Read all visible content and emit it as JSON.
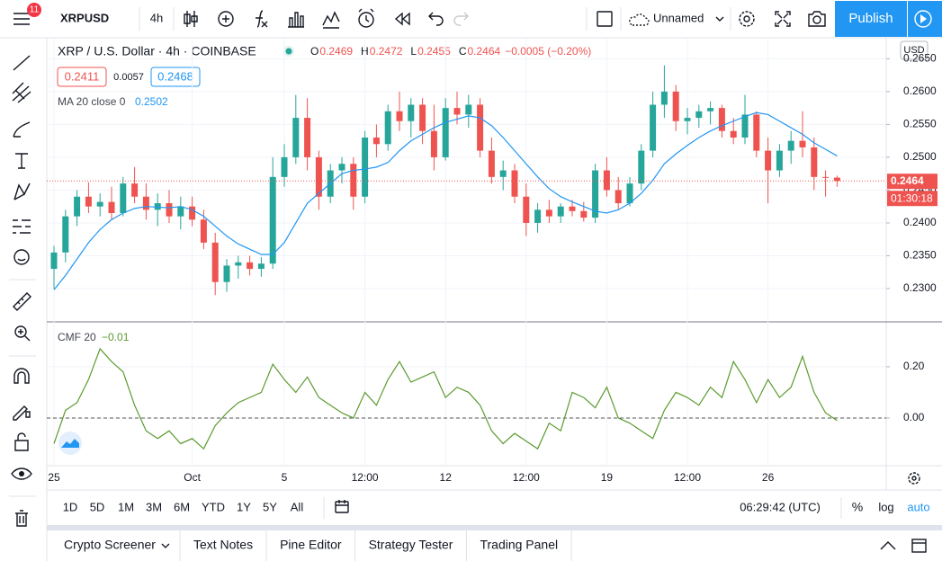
{
  "toolbar": {
    "badge": "11",
    "symbol": "XRPUSD",
    "interval": "4h",
    "layout_name": "Unnamed",
    "publish": "Publish"
  },
  "chart_data": [
    {
      "type": "candlestick",
      "title": "XRP / U.S. Dollar · 4h · COINBASE",
      "legend": [
        {
          "key": "O",
          "label": "0.2469"
        },
        {
          "key": "H",
          "label": "0.2472"
        },
        {
          "key": "L",
          "label": "0.2455"
        },
        {
          "key": "C",
          "label": "0.2464"
        }
      ],
      "change": "−0.0005 (−0.20%)",
      "quote": [
        "0.2411",
        "0.0057",
        "0.2468"
      ],
      "currency": "USD",
      "up_color": "#26a69a",
      "down_color": "#ef5350",
      "categories": [
        "25",
        null,
        null,
        null,
        null,
        null,
        null,
        null,
        null,
        null,
        null,
        null,
        "Oct",
        null,
        null,
        null,
        null,
        null,
        null,
        null,
        "5",
        null,
        null,
        null,
        null,
        null,
        null,
        "12:00",
        null,
        null,
        null,
        null,
        null,
        null,
        "12",
        null,
        null,
        null,
        null,
        null,
        null,
        "12:00",
        null,
        null,
        null,
        null,
        null,
        null,
        "19",
        null,
        null,
        null,
        null,
        null,
        null,
        "12:00",
        null,
        null,
        null,
        null,
        null,
        null,
        "26",
        null,
        null,
        null,
        null,
        null,
        null
      ],
      "candles": [
        [
          0.233,
          0.2365,
          0.23,
          0.2355
        ],
        [
          0.2355,
          0.242,
          0.234,
          0.241
        ],
        [
          0.241,
          0.245,
          0.2395,
          0.244
        ],
        [
          0.244,
          0.2462,
          0.2415,
          0.2425
        ],
        [
          0.2425,
          0.2445,
          0.241,
          0.2432
        ],
        [
          0.2432,
          0.2455,
          0.2405,
          0.2415
        ],
        [
          0.2415,
          0.247,
          0.241,
          0.246
        ],
        [
          0.246,
          0.2485,
          0.243,
          0.244
        ],
        [
          0.244,
          0.246,
          0.2405,
          0.242
        ],
        [
          0.242,
          0.2445,
          0.2395,
          0.243
        ],
        [
          0.243,
          0.245,
          0.24,
          0.241
        ],
        [
          0.241,
          0.244,
          0.239,
          0.2425
        ],
        [
          0.2425,
          0.244,
          0.2395,
          0.2405
        ],
        [
          0.2405,
          0.242,
          0.236,
          0.237
        ],
        [
          0.237,
          0.2385,
          0.229,
          0.231
        ],
        [
          0.231,
          0.2345,
          0.2295,
          0.2335
        ],
        [
          0.2335,
          0.235,
          0.2315,
          0.234
        ],
        [
          0.234,
          0.235,
          0.232,
          0.233
        ],
        [
          0.233,
          0.2348,
          0.2318,
          0.2338
        ],
        [
          0.2338,
          0.25,
          0.233,
          0.247
        ],
        [
          0.247,
          0.252,
          0.2455,
          0.25
        ],
        [
          0.25,
          0.2595,
          0.249,
          0.256
        ],
        [
          0.256,
          0.259,
          0.248,
          0.25
        ],
        [
          0.25,
          0.251,
          0.242,
          0.244
        ],
        [
          0.244,
          0.249,
          0.243,
          0.248
        ],
        [
          0.248,
          0.25,
          0.246,
          0.249
        ],
        [
          0.249,
          0.25,
          0.242,
          0.244
        ],
        [
          0.244,
          0.254,
          0.243,
          0.253
        ],
        [
          0.253,
          0.255,
          0.25,
          0.252
        ],
        [
          0.252,
          0.258,
          0.251,
          0.257
        ],
        [
          0.257,
          0.26,
          0.254,
          0.2555
        ],
        [
          0.2555,
          0.259,
          0.253,
          0.258
        ],
        [
          0.258,
          0.259,
          0.252,
          0.254
        ],
        [
          0.254,
          0.258,
          0.248,
          0.25
        ],
        [
          0.25,
          0.259,
          0.2495,
          0.2575
        ],
        [
          0.2575,
          0.26,
          0.255,
          0.2565
        ],
        [
          0.2565,
          0.2595,
          0.2545,
          0.258
        ],
        [
          0.258,
          0.259,
          0.25,
          0.251
        ],
        [
          0.251,
          0.253,
          0.246,
          0.247
        ],
        [
          0.247,
          0.2495,
          0.245,
          0.248
        ],
        [
          0.248,
          0.249,
          0.243,
          0.244
        ],
        [
          0.244,
          0.246,
          0.238,
          0.24
        ],
        [
          0.24,
          0.243,
          0.2385,
          0.242
        ],
        [
          0.242,
          0.2435,
          0.24,
          0.241
        ],
        [
          0.241,
          0.243,
          0.24,
          0.2425
        ],
        [
          0.2425,
          0.2435,
          0.241,
          0.2418
        ],
        [
          0.2418,
          0.2432,
          0.2402,
          0.2408
        ],
        [
          0.2408,
          0.249,
          0.24,
          0.248
        ],
        [
          0.248,
          0.25,
          0.244,
          0.245
        ],
        [
          0.245,
          0.247,
          0.242,
          0.243
        ],
        [
          0.243,
          0.247,
          0.2425,
          0.246
        ],
        [
          0.246,
          0.252,
          0.245,
          0.251
        ],
        [
          0.251,
          0.26,
          0.25,
          0.258
        ],
        [
          0.258,
          0.264,
          0.256,
          0.26
        ],
        [
          0.26,
          0.261,
          0.254,
          0.2555
        ],
        [
          0.2555,
          0.2575,
          0.2535,
          0.256
        ],
        [
          0.256,
          0.258,
          0.2545,
          0.257
        ],
        [
          0.257,
          0.2585,
          0.255,
          0.2575
        ],
        [
          0.2575,
          0.258,
          0.253,
          0.254
        ],
        [
          0.254,
          0.256,
          0.252,
          0.253
        ],
        [
          0.253,
          0.2595,
          0.252,
          0.2565
        ],
        [
          0.2565,
          0.257,
          0.25,
          0.251
        ],
        [
          0.251,
          0.253,
          0.243,
          0.248
        ],
        [
          0.248,
          0.252,
          0.247,
          0.251
        ],
        [
          0.251,
          0.254,
          0.249,
          0.2525
        ],
        [
          0.2525,
          0.257,
          0.25,
          0.2515
        ],
        [
          0.2515,
          0.253,
          0.245,
          0.247
        ],
        [
          0.247,
          0.248,
          0.244,
          0.2469
        ],
        [
          0.2469,
          0.2472,
          0.2455,
          0.2464
        ]
      ],
      "series": [
        {
          "name": "MA 20 close 0",
          "color": "#2196f3",
          "last_label": "0.2502",
          "values": [
            0.2298,
            0.232,
            0.2345,
            0.237,
            0.239,
            0.2405,
            0.2415,
            0.2422,
            0.2425,
            0.2424,
            0.2423,
            0.2425,
            0.242,
            0.241,
            0.2395,
            0.238,
            0.2368,
            0.236,
            0.2352,
            0.2352,
            0.237,
            0.24,
            0.243,
            0.2445,
            0.246,
            0.2475,
            0.248,
            0.2482,
            0.2485,
            0.2492,
            0.251,
            0.2525,
            0.2535,
            0.2545,
            0.2553,
            0.2558,
            0.2563,
            0.256,
            0.2548,
            0.253,
            0.251,
            0.249,
            0.247,
            0.2452,
            0.244,
            0.2432,
            0.2425,
            0.2418,
            0.2415,
            0.242,
            0.243,
            0.2445,
            0.2465,
            0.249,
            0.2505,
            0.2518,
            0.253,
            0.254,
            0.2548,
            0.2555,
            0.2562,
            0.2568,
            0.2565,
            0.2555,
            0.2545,
            0.2535,
            0.2522,
            0.2512,
            0.2502
          ]
        }
      ],
      "last_price": {
        "value": 0.2464,
        "label": "0.2464",
        "countdown": "01:30:18"
      },
      "ylim": [
        0.22493,
        0.2682
      ],
      "yticks": [
        {
          "value": 0.23,
          "label": "0.2300"
        },
        {
          "value": 0.235,
          "label": "0.2350"
        },
        {
          "value": 0.24,
          "label": "0.2400"
        },
        {
          "value": 0.245,
          "label": "0.2450"
        },
        {
          "value": 0.25,
          "label": "0.2500"
        },
        {
          "value": 0.255,
          "label": "0.2550"
        },
        {
          "value": 0.26,
          "label": "0.2600"
        },
        {
          "value": 0.265,
          "label": "0.2650"
        }
      ]
    },
    {
      "type": "line",
      "series": [
        {
          "name": "CMF 20",
          "color": "#5b9a2e",
          "last_label": "−0.01",
          "values": [
            -0.1,
            0.03,
            0.06,
            0.15,
            0.27,
            0.22,
            0.18,
            0.05,
            -0.05,
            -0.08,
            -0.05,
            -0.1,
            -0.08,
            -0.12,
            -0.03,
            0.02,
            0.06,
            0.08,
            0.1,
            0.21,
            0.15,
            0.1,
            0.16,
            0.08,
            0.05,
            0.02,
            0.0,
            0.1,
            0.05,
            0.15,
            0.22,
            0.14,
            0.16,
            0.18,
            0.08,
            0.12,
            0.1,
            0.05,
            -0.05,
            -0.1,
            -0.06,
            -0.09,
            -0.12,
            -0.02,
            -0.05,
            0.1,
            0.08,
            0.04,
            0.12,
            0.0,
            -0.02,
            -0.05,
            -0.08,
            0.03,
            0.1,
            0.08,
            0.05,
            0.12,
            0.08,
            0.22,
            0.15,
            0.06,
            0.15,
            0.08,
            0.12,
            0.24,
            0.1,
            0.02,
            -0.01
          ]
        }
      ],
      "ylim": [
        -0.186,
        0.375
      ],
      "yticks": [
        {
          "value": 0,
          "label": "0.00"
        },
        {
          "value": 0.2,
          "label": "0.20"
        }
      ],
      "zero_line": 0
    }
  ],
  "bottom_bar": {
    "ranges": [
      "1D",
      "5D",
      "1M",
      "3M",
      "6M",
      "YTD",
      "1Y",
      "5Y",
      "All"
    ],
    "clock": "06:29:42 (UTC)",
    "percent": "%",
    "log": "log",
    "auto": "auto"
  },
  "tabs": [
    "Crypto Screener",
    "Text Notes",
    "Pine Editor",
    "Strategy Tester",
    "Trading Panel"
  ]
}
